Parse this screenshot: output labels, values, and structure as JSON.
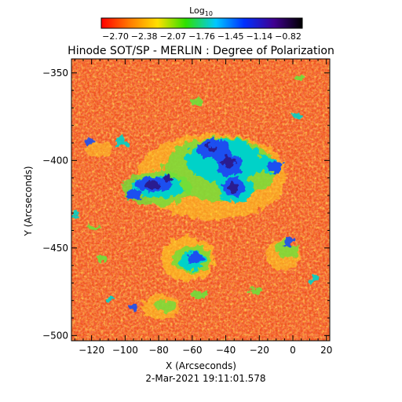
{
  "title": "Hinode SOT/SP - MERLIN : Degree of Polarization",
  "timestamp": "2-Mar-2021 19:11:01.578",
  "colorbar": {
    "label": "Log10",
    "ticks": [
      "−2.70",
      "−2.38",
      "−2.07",
      "−1.76",
      "−1.45",
      "−1.14",
      "−0.82"
    ],
    "colors": [
      "#ff0000",
      "#ff8c00",
      "#ffff00",
      "#00e400",
      "#00c8ff",
      "#0000ff",
      "#400090",
      "#000000"
    ]
  },
  "axes": {
    "xlabel": "X (Arcseconds)",
    "ylabel": "Y (Arcseconds)",
    "xlim": [
      -132,
      22
    ],
    "ylim": [
      -503,
      -342
    ],
    "xticks": [
      -120,
      -100,
      -80,
      -60,
      -40,
      -20,
      0,
      20
    ],
    "xtick_labels": [
      "−120",
      "−100",
      "−80",
      "−60",
      "−40",
      "−20",
      "0",
      "20"
    ],
    "yticks": [
      -350,
      -400,
      -450,
      -500
    ],
    "ytick_labels": [
      "−350",
      "−400",
      "−450",
      "−500"
    ]
  },
  "image": {
    "background_color": "#f25a1e",
    "description_colors": [
      "#e8341a",
      "#ff8c1c",
      "#ffd21e",
      "#7ee03a",
      "#00d2c8",
      "#1e5cf0",
      "#2020b8"
    ]
  }
}
